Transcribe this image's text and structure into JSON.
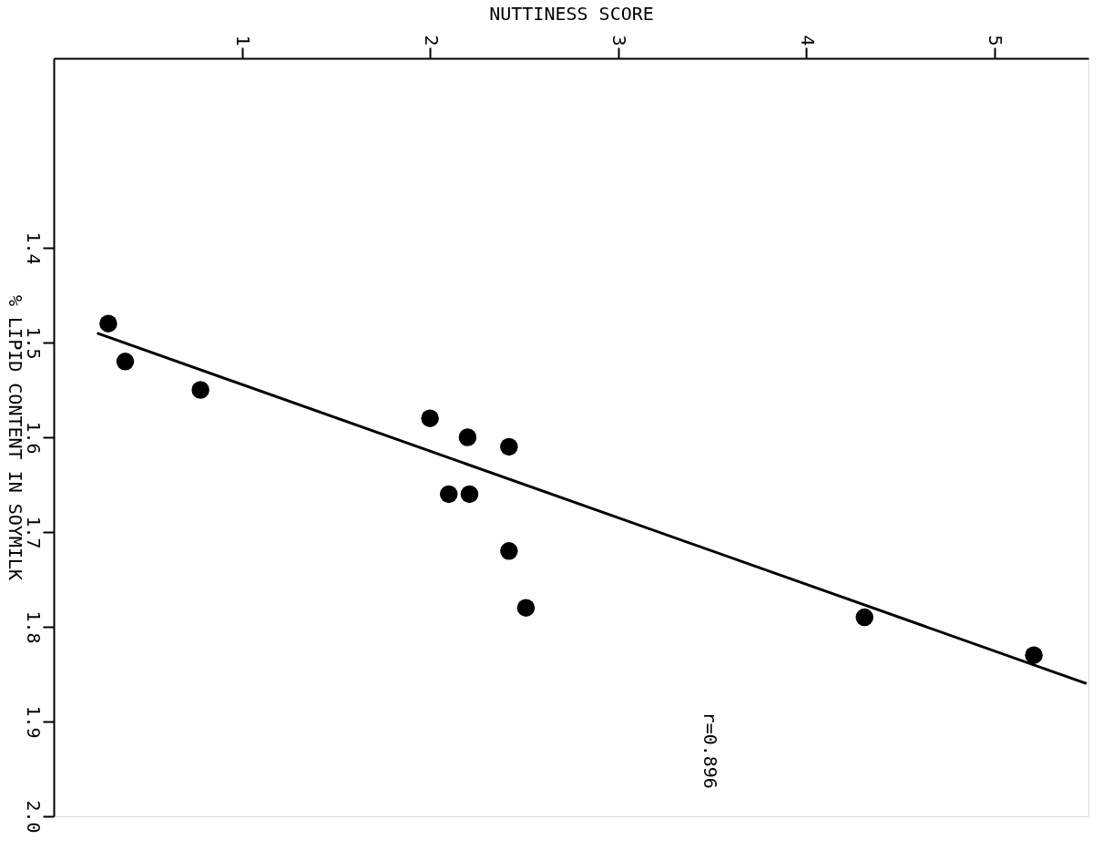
{
  "chart_data": {
    "type": "scatter",
    "xlabel": "NUTTINESS SCORE",
    "ylabel": "% LIPID CONTENT IN SOYMILK",
    "xlim": [
      0,
      5.5
    ],
    "xticks": [
      1,
      2,
      3,
      4,
      5
    ],
    "ylim": [
      2.0,
      1.2
    ],
    "yticks": [
      1.4,
      1.5,
      1.6,
      1.7,
      1.8,
      1.9,
      {
        "value": 2,
        "label": "2.0"
      }
    ],
    "grid": false,
    "series": [
      {
        "marker": "circle",
        "color": "#000000",
        "x": [
          0.29,
          0.38,
          0.78,
          2.0,
          2.1,
          2.2,
          2.21,
          2.42,
          2.42,
          2.51,
          4.31,
          5.21
        ],
        "values": [
          1.48,
          1.52,
          1.55,
          1.58,
          1.66,
          1.6,
          1.66,
          1.61,
          1.72,
          1.78,
          1.79,
          1.83
        ]
      },
      {
        "type": "line",
        "color": "#000000",
        "x": [
          0.23,
          5.49
        ],
        "values": [
          1.49,
          1.86
        ]
      }
    ],
    "annotations": [
      "r=0.896"
    ]
  }
}
